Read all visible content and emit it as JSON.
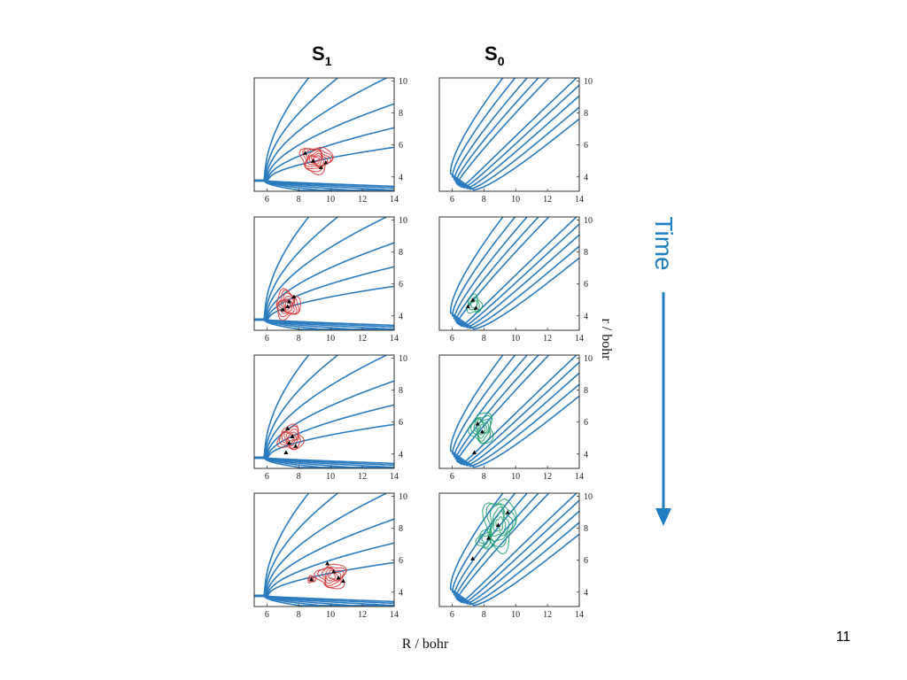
{
  "slide": {
    "page_number": "11",
    "columns": [
      {
        "letter": "S",
        "subscript": "1"
      },
      {
        "letter": "S",
        "subscript": "0"
      }
    ],
    "x_axis_label": "R / bohr",
    "y_axis_label": "r / bohr",
    "time_label": "Time",
    "x_ticks": [
      "6",
      "8",
      "10",
      "12",
      "14"
    ],
    "y_ticks": [
      "10",
      "8",
      "6",
      "4"
    ],
    "colors": {
      "potential_contours": "#2b7bbf",
      "s1_wavepacket": "#d23a3a",
      "s0_wavepacket": "#20a070",
      "time_arrow": "#1f7fc1"
    }
  }
}
